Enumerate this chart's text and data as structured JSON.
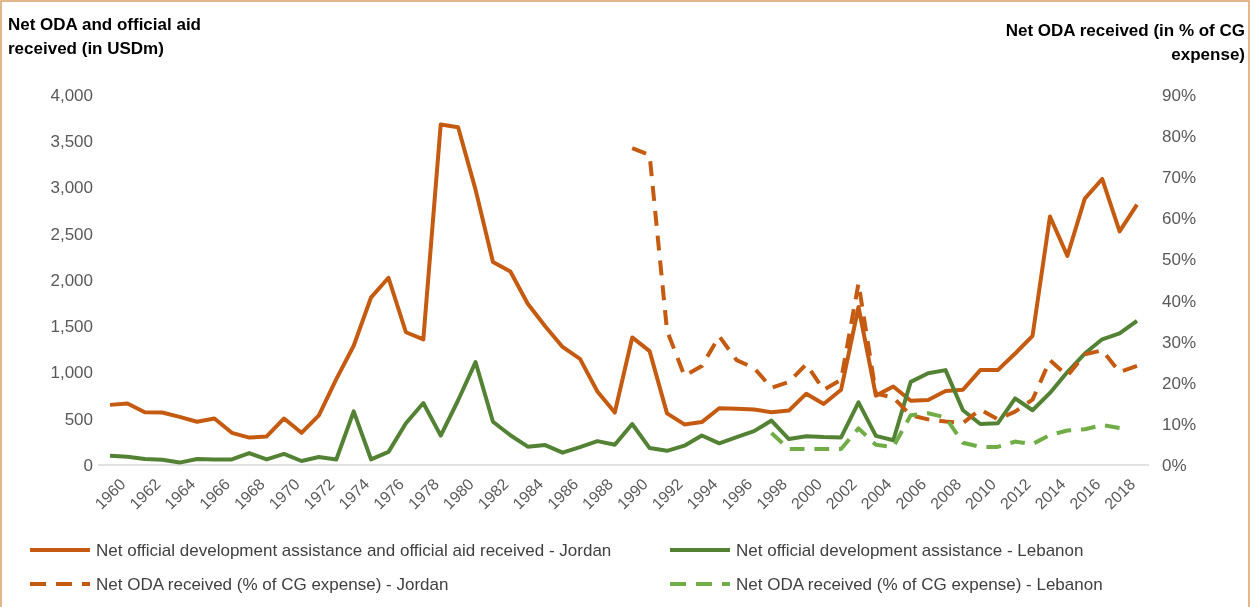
{
  "chart_data": {
    "type": "line",
    "ylabel": "Net ODA and official aid received (in USDm)",
    "y2label": "Net ODA received (in % of CG expense)",
    "categories": [
      "1960",
      null,
      "1962",
      null,
      "1964",
      null,
      "1966",
      null,
      "1968",
      null,
      "1970",
      null,
      "1972",
      null,
      "1974",
      null,
      "1976",
      null,
      "1978",
      null,
      "1980",
      null,
      "1982",
      null,
      "1984",
      null,
      "1986",
      null,
      "1988",
      null,
      "1990",
      null,
      "1992",
      null,
      "1994",
      null,
      "1996",
      null,
      "1998",
      null,
      "2000",
      null,
      "2002",
      null,
      "2004",
      null,
      "2006",
      null,
      "2008",
      null,
      "2010",
      null,
      "2012",
      null,
      "2014",
      null,
      "2016",
      null,
      "2018",
      null
    ],
    "ylim": [
      0,
      4000
    ],
    "yticks": [
      0,
      500,
      {
        "value": 1000,
        "label": "1,000"
      },
      {
        "value": 1500,
        "label": "1,500"
      },
      {
        "value": 2000,
        "label": "2,000"
      },
      {
        "value": 2500,
        "label": "2,500"
      },
      {
        "value": 3000,
        "label": "3,000"
      },
      {
        "value": 3500,
        "label": "3,500"
      },
      {
        "value": 4000,
        "label": "4,000"
      }
    ],
    "y2lim": [
      0,
      90
    ],
    "y2ticks": [
      {
        "value": 0,
        "label": "0%"
      },
      {
        "value": 10,
        "label": "10%"
      },
      {
        "value": 20,
        "label": "20%"
      },
      {
        "value": 30,
        "label": "30%"
      },
      {
        "value": 40,
        "label": "40%"
      },
      {
        "value": 50,
        "label": "50%"
      },
      {
        "value": 60,
        "label": "60%"
      },
      {
        "value": 70,
        "label": "70%"
      },
      {
        "value": 80,
        "label": "80%"
      },
      {
        "value": 90,
        "label": "90%"
      }
    ],
    "grid": false,
    "legend": "bottom",
    "marker": "none",
    "series": [
      {
        "name": "Net official development assistance and official aid received - Jordan",
        "color": "#c55a11",
        "line_style": "solid",
        "values": [
          650,
          665,
          571,
          567,
          520,
          468,
          503,
          348,
          296,
          309,
          503,
          348,
          537,
          928,
          1289,
          1813,
          2024,
          1435,
          1358,
          3682,
          3652,
          2977,
          2195,
          2092,
          1744,
          1500,
          1276,
          1147,
          795,
          567,
          1379,
          1231,
          558,
          439,
          464,
          613,
          609,
          600,
          571,
          588,
          771,
          660,
          813,
          1708,
          750,
          848,
          694,
          703,
          801,
          813,
          1026,
          1026,
          1205,
          1397,
          2687,
          2261,
          2879,
          3092,
          2526,
          2815
        ]
      },
      {
        "name": "Net official development assistance - Lebanon",
        "color": "#548235",
        "line_style": "solid",
        "values": [
          99,
          90,
          64,
          56,
          26,
          64,
          60,
          60,
          129,
          60,
          120,
          43,
          86,
          60,
          580,
          60,
          142,
          451,
          670,
          318,
          700,
          1113,
          468,
          322,
          198,
          215,
          133,
          193,
          258,
          219,
          443,
          183,
          153,
          209,
          319,
          234,
          302,
          366,
          481,
          281,
          311,
          302,
          298,
          677,
          315,
          268,
          899,
          992,
          1026,
          592,
          443,
          451,
          720,
          592,
          779,
          1005,
          1205,
          1359,
          1422,
          1559
        ]
      },
      {
        "name": "Net ODA received (% of CG expense) - Jordan",
        "color": "#c55a11",
        "line_style": "dashed",
        "axis": "y2",
        "values": [
          null,
          null,
          null,
          null,
          null,
          null,
          null,
          null,
          null,
          null,
          null,
          null,
          null,
          null,
          null,
          null,
          null,
          null,
          null,
          null,
          null,
          null,
          null,
          null,
          null,
          null,
          null,
          null,
          null,
          null,
          77.1,
          75.4,
          32.7,
          21.7,
          24.1,
          31.3,
          25.5,
          23.6,
          18.8,
          20.2,
          24.5,
          18.3,
          20.7,
          44.2,
          17.4,
          16.4,
          12.1,
          11.1,
          10.6,
          10.2,
          13.5,
          11.1,
          13.0,
          15.9,
          25.5,
          21.7,
          26.9,
          27.9,
          22.6,
          24.1
        ]
      },
      {
        "name": "Net ODA received (% of CG expense) - Lebanon",
        "color": "#70ad47",
        "line_style": "dashed",
        "axis": "y2",
        "values": [
          null,
          null,
          null,
          null,
          null,
          null,
          null,
          null,
          null,
          null,
          null,
          null,
          null,
          null,
          null,
          null,
          null,
          null,
          null,
          null,
          null,
          null,
          null,
          null,
          null,
          null,
          null,
          null,
          null,
          null,
          null,
          null,
          null,
          null,
          null,
          null,
          null,
          null,
          7.8,
          3.9,
          3.9,
          3.9,
          3.9,
          8.9,
          4.9,
          4.4,
          12.1,
          12.6,
          11.6,
          5.4,
          4.4,
          4.4,
          5.7,
          5.1,
          7.3,
          8.4,
          8.7,
          9.7,
          9.0,
          null
        ]
      }
    ]
  }
}
